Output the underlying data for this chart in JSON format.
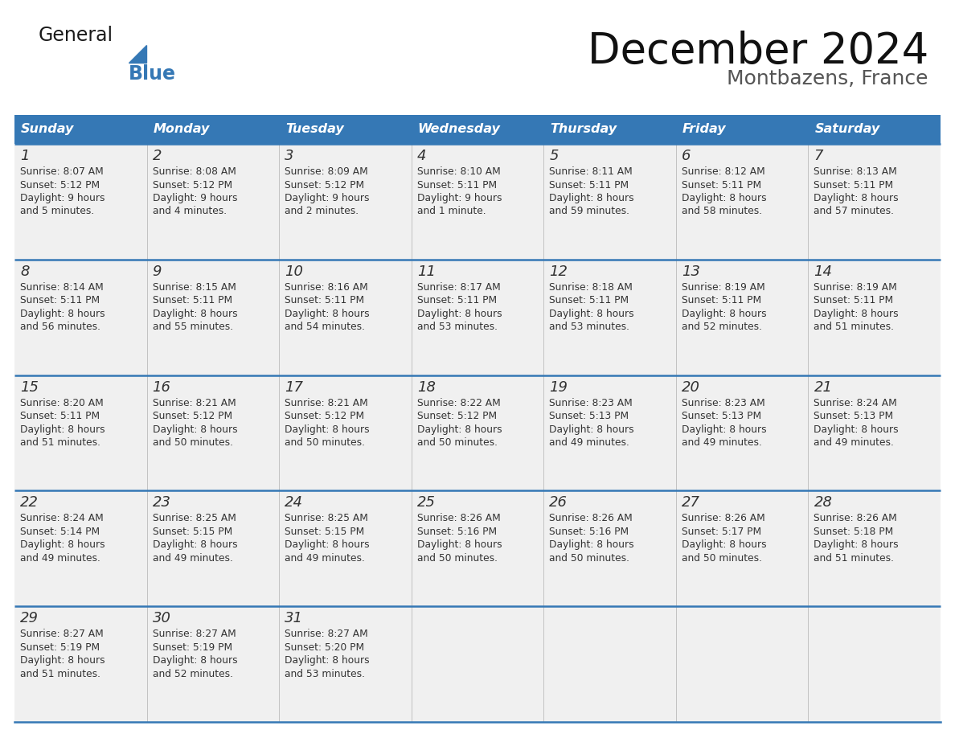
{
  "title": "December 2024",
  "subtitle": "Montbazens, France",
  "days_of_week": [
    "Sunday",
    "Monday",
    "Tuesday",
    "Wednesday",
    "Thursday",
    "Friday",
    "Saturday"
  ],
  "header_bg": "#3578b5",
  "header_text": "#ffffff",
  "cell_bg_light": "#f0f0f0",
  "divider_color": "#3578b5",
  "text_color": "#333333",
  "logo_general_color": "#1a1a1a",
  "logo_blue_color": "#3578b5",
  "calendar_data": [
    [
      {
        "day": 1,
        "sunrise": "8:07 AM",
        "sunset": "5:12 PM",
        "daylight": "9 hours",
        "daylight2": "and 5 minutes."
      },
      {
        "day": 2,
        "sunrise": "8:08 AM",
        "sunset": "5:12 PM",
        "daylight": "9 hours",
        "daylight2": "and 4 minutes."
      },
      {
        "day": 3,
        "sunrise": "8:09 AM",
        "sunset": "5:12 PM",
        "daylight": "9 hours",
        "daylight2": "and 2 minutes."
      },
      {
        "day": 4,
        "sunrise": "8:10 AM",
        "sunset": "5:11 PM",
        "daylight": "9 hours",
        "daylight2": "and 1 minute."
      },
      {
        "day": 5,
        "sunrise": "8:11 AM",
        "sunset": "5:11 PM",
        "daylight": "8 hours",
        "daylight2": "and 59 minutes."
      },
      {
        "day": 6,
        "sunrise": "8:12 AM",
        "sunset": "5:11 PM",
        "daylight": "8 hours",
        "daylight2": "and 58 minutes."
      },
      {
        "day": 7,
        "sunrise": "8:13 AM",
        "sunset": "5:11 PM",
        "daylight": "8 hours",
        "daylight2": "and 57 minutes."
      }
    ],
    [
      {
        "day": 8,
        "sunrise": "8:14 AM",
        "sunset": "5:11 PM",
        "daylight": "8 hours",
        "daylight2": "and 56 minutes."
      },
      {
        "day": 9,
        "sunrise": "8:15 AM",
        "sunset": "5:11 PM",
        "daylight": "8 hours",
        "daylight2": "and 55 minutes."
      },
      {
        "day": 10,
        "sunrise": "8:16 AM",
        "sunset": "5:11 PM",
        "daylight": "8 hours",
        "daylight2": "and 54 minutes."
      },
      {
        "day": 11,
        "sunrise": "8:17 AM",
        "sunset": "5:11 PM",
        "daylight": "8 hours",
        "daylight2": "and 53 minutes."
      },
      {
        "day": 12,
        "sunrise": "8:18 AM",
        "sunset": "5:11 PM",
        "daylight": "8 hours",
        "daylight2": "and 53 minutes."
      },
      {
        "day": 13,
        "sunrise": "8:19 AM",
        "sunset": "5:11 PM",
        "daylight": "8 hours",
        "daylight2": "and 52 minutes."
      },
      {
        "day": 14,
        "sunrise": "8:19 AM",
        "sunset": "5:11 PM",
        "daylight": "8 hours",
        "daylight2": "and 51 minutes."
      }
    ],
    [
      {
        "day": 15,
        "sunrise": "8:20 AM",
        "sunset": "5:11 PM",
        "daylight": "8 hours",
        "daylight2": "and 51 minutes."
      },
      {
        "day": 16,
        "sunrise": "8:21 AM",
        "sunset": "5:12 PM",
        "daylight": "8 hours",
        "daylight2": "and 50 minutes."
      },
      {
        "day": 17,
        "sunrise": "8:21 AM",
        "sunset": "5:12 PM",
        "daylight": "8 hours",
        "daylight2": "and 50 minutes."
      },
      {
        "day": 18,
        "sunrise": "8:22 AM",
        "sunset": "5:12 PM",
        "daylight": "8 hours",
        "daylight2": "and 50 minutes."
      },
      {
        "day": 19,
        "sunrise": "8:23 AM",
        "sunset": "5:13 PM",
        "daylight": "8 hours",
        "daylight2": "and 49 minutes."
      },
      {
        "day": 20,
        "sunrise": "8:23 AM",
        "sunset": "5:13 PM",
        "daylight": "8 hours",
        "daylight2": "and 49 minutes."
      },
      {
        "day": 21,
        "sunrise": "8:24 AM",
        "sunset": "5:13 PM",
        "daylight": "8 hours",
        "daylight2": "and 49 minutes."
      }
    ],
    [
      {
        "day": 22,
        "sunrise": "8:24 AM",
        "sunset": "5:14 PM",
        "daylight": "8 hours",
        "daylight2": "and 49 minutes."
      },
      {
        "day": 23,
        "sunrise": "8:25 AM",
        "sunset": "5:15 PM",
        "daylight": "8 hours",
        "daylight2": "and 49 minutes."
      },
      {
        "day": 24,
        "sunrise": "8:25 AM",
        "sunset": "5:15 PM",
        "daylight": "8 hours",
        "daylight2": "and 49 minutes."
      },
      {
        "day": 25,
        "sunrise": "8:26 AM",
        "sunset": "5:16 PM",
        "daylight": "8 hours",
        "daylight2": "and 50 minutes."
      },
      {
        "day": 26,
        "sunrise": "8:26 AM",
        "sunset": "5:16 PM",
        "daylight": "8 hours",
        "daylight2": "and 50 minutes."
      },
      {
        "day": 27,
        "sunrise": "8:26 AM",
        "sunset": "5:17 PM",
        "daylight": "8 hours",
        "daylight2": "and 50 minutes."
      },
      {
        "day": 28,
        "sunrise": "8:26 AM",
        "sunset": "5:18 PM",
        "daylight": "8 hours",
        "daylight2": "and 51 minutes."
      }
    ],
    [
      {
        "day": 29,
        "sunrise": "8:27 AM",
        "sunset": "5:19 PM",
        "daylight": "8 hours",
        "daylight2": "and 51 minutes."
      },
      {
        "day": 30,
        "sunrise": "8:27 AM",
        "sunset": "5:19 PM",
        "daylight": "8 hours",
        "daylight2": "and 52 minutes."
      },
      {
        "day": 31,
        "sunrise": "8:27 AM",
        "sunset": "5:20 PM",
        "daylight": "8 hours",
        "daylight2": "and 53 minutes."
      },
      null,
      null,
      null,
      null
    ]
  ]
}
